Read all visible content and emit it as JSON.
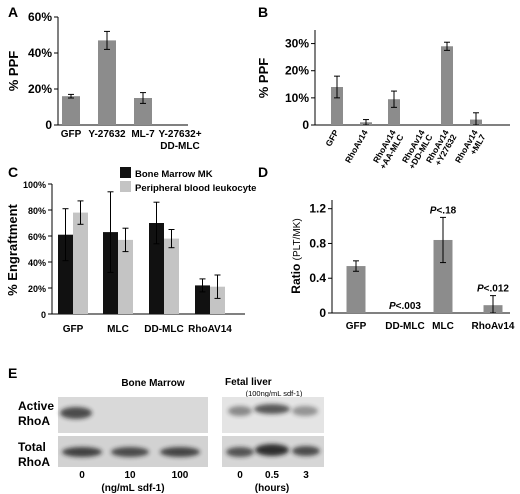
{
  "chart_data": [
    {
      "panel": "A",
      "type": "bar",
      "ylabel": "% PPF",
      "yticks": [
        "0",
        "20%",
        "40%",
        "60%"
      ],
      "ylim": [
        0,
        60
      ],
      "categories": [
        "GFP",
        "Y-27632",
        "ML-7",
        "Y-27632+\nDD-MLC"
      ],
      "values": [
        16,
        47,
        15,
        0
      ],
      "errors": [
        1,
        5,
        3,
        0
      ],
      "bar_color": "#8c8c8c"
    },
    {
      "panel": "B",
      "type": "bar",
      "ylabel": "% PPF",
      "yticks": [
        "0",
        "10%",
        "20%",
        "30%"
      ],
      "ylim": [
        0,
        35
      ],
      "categories": [
        "GFP",
        "RhoAv14",
        "RhoAv14\n+AA-MLC",
        "RhoAv14\n+DD-MLC",
        "RhoAv14\n+Y27632",
        "RhoAv14\n+ML7"
      ],
      "values": [
        14,
        1,
        9.5,
        0,
        29,
        2
      ],
      "errors": [
        4,
        1,
        3,
        0,
        1.5,
        2.5
      ],
      "bar_color": "#8c8c8c"
    },
    {
      "panel": "C",
      "type": "bar",
      "ylabel": "% Engraftment",
      "yticks": [
        "0",
        "20%",
        "40%",
        "60%",
        "80%",
        "100%"
      ],
      "ylim": [
        0,
        100
      ],
      "categories": [
        "GFP",
        "MLC",
        "DD-MLC",
        "RhoAV14"
      ],
      "series": [
        {
          "name": "Bone Marrow MK",
          "color": "#111111",
          "values": [
            61,
            63,
            70,
            22
          ],
          "errors": [
            20,
            31,
            16,
            5
          ]
        },
        {
          "name": "Peripheral blood leukocyte",
          "color": "#c4c4c4",
          "values": [
            78,
            57,
            58,
            21
          ],
          "errors": [
            9,
            9,
            7,
            9
          ]
        }
      ]
    },
    {
      "panel": "D",
      "type": "bar",
      "ylabel": "Ratio",
      "ylabel_unit": "(PLT/MK)",
      "yticks": [
        "0",
        "0.4",
        "0.8",
        "1.2"
      ],
      "ylim": [
        0,
        1.3
      ],
      "categories": [
        "GFP",
        "DD-MLC",
        "MLC",
        "RhoAv14"
      ],
      "values": [
        0.54,
        0,
        0.84,
        0.09
      ],
      "errors": [
        0.06,
        0,
        0.26,
        0.11
      ],
      "annotations": [
        "",
        "P<.003",
        "P<.18",
        "P<.012"
      ],
      "bar_color": "#8c8c8c"
    }
  ],
  "panel_e": {
    "label": "E",
    "rows": [
      "Active\nRhoA",
      "Total\nRhoA"
    ],
    "groups": [
      {
        "title": "Bone Marrow",
        "subtitle": "",
        "lanes": [
          "0",
          "10",
          "100"
        ],
        "unit": "(ng/mL sdf-1)"
      },
      {
        "title": "Fetal liver",
        "subtitle": "(100ng/mL sdf-1)",
        "lanes": [
          "0",
          "0.5",
          "3"
        ],
        "unit": "(hours)"
      }
    ]
  }
}
